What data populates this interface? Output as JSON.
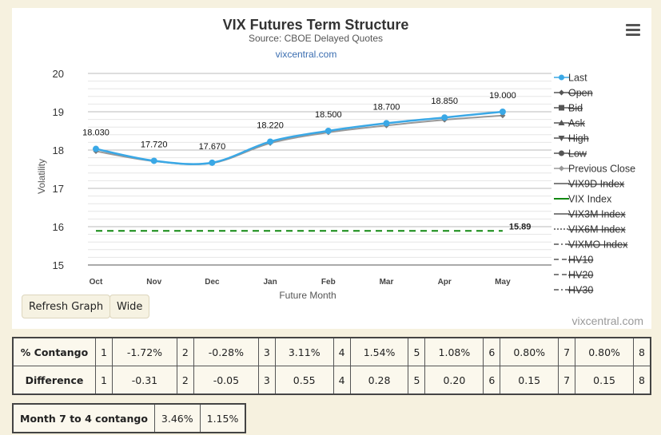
{
  "chart_data": {
    "type": "line",
    "title": "VIX Futures Term Structure",
    "subtitle": "Source: CBOE Delayed Quotes",
    "link_text": "vixcentral.com",
    "credit": "vixcentral.com",
    "xlabel": "Future Month",
    "ylabel": "Volatility",
    "ylim": [
      15,
      20
    ],
    "yticks": [
      15,
      16,
      17,
      18,
      19,
      20
    ],
    "categories": [
      "Oct",
      "Nov",
      "Dec",
      "Jan",
      "Feb",
      "Mar",
      "Apr",
      "May"
    ],
    "series": [
      {
        "name": "Last",
        "values": [
          18.03,
          17.72,
          17.67,
          18.22,
          18.5,
          18.7,
          18.85,
          19.0
        ],
        "color": "#3aa8e6",
        "data_labels": [
          "18.030",
          "17.720",
          "17.670",
          "18.220",
          "18.500",
          "18.700",
          "18.850",
          "19.000"
        ]
      },
      {
        "name": "Previous Close",
        "values": [
          17.97,
          17.71,
          17.66,
          18.18,
          18.46,
          18.64,
          18.79,
          18.9
        ],
        "color": "#999999"
      },
      {
        "name": "VIX Index",
        "values": [
          15.89,
          15.89,
          15.89,
          15.89,
          15.89,
          15.89,
          15.89,
          15.89
        ],
        "color": "#118811",
        "end_label": "15.89"
      }
    ],
    "legend": {
      "placement": "right",
      "items": [
        {
          "label": "Last",
          "symbol": "circle-line",
          "color": "#3aa8e6",
          "hidden": false
        },
        {
          "label": "Open",
          "symbol": "diamond-line",
          "color": "#555555",
          "hidden": true
        },
        {
          "label": "Bid",
          "symbol": "square-line",
          "color": "#555555",
          "hidden": true
        },
        {
          "label": "Ask",
          "symbol": "triangle-line",
          "color": "#555555",
          "hidden": true
        },
        {
          "label": "High",
          "symbol": "triangle-down-line",
          "color": "#555555",
          "hidden": true
        },
        {
          "label": "Low",
          "symbol": "circle-line",
          "color": "#555555",
          "hidden": true
        },
        {
          "label": "Previous Close",
          "symbol": "diamond-line",
          "color": "#999999",
          "hidden": false
        },
        {
          "label": "VIX9D Index",
          "symbol": "solid",
          "color": "#555555",
          "hidden": true
        },
        {
          "label": "VIX Index",
          "symbol": "solid",
          "color": "#118811",
          "hidden": false
        },
        {
          "label": "VIX3M Index",
          "symbol": "solid",
          "color": "#555555",
          "hidden": true
        },
        {
          "label": "VIX6M Index",
          "symbol": "dotted",
          "color": "#555555",
          "hidden": true
        },
        {
          "label": "VIXMO Index",
          "symbol": "dashdot",
          "color": "#555555",
          "hidden": true
        },
        {
          "label": "HV10",
          "symbol": "dashed",
          "color": "#555555",
          "hidden": true
        },
        {
          "label": "HV20",
          "symbol": "dashed",
          "color": "#555555",
          "hidden": true
        },
        {
          "label": "HV30",
          "symbol": "dashdot",
          "color": "#555555",
          "hidden": true
        }
      ]
    },
    "grid": true
  },
  "buttons": {
    "refresh": "Refresh Graph",
    "wide": "Wide"
  },
  "contango_table": {
    "rows": [
      {
        "label": "% Contango",
        "cells": [
          [
            "1",
            "-1.72%"
          ],
          [
            "2",
            "-0.28%"
          ],
          [
            "3",
            "3.11%"
          ],
          [
            "4",
            "1.54%"
          ],
          [
            "5",
            "1.08%"
          ],
          [
            "6",
            "0.80%"
          ],
          [
            "7",
            "0.80%"
          ]
        ],
        "last": "8"
      },
      {
        "label": "Difference",
        "cells": [
          [
            "1",
            "-0.31"
          ],
          [
            "2",
            "-0.05"
          ],
          [
            "3",
            "0.55"
          ],
          [
            "4",
            "0.28"
          ],
          [
            "5",
            "0.20"
          ],
          [
            "6",
            "0.15"
          ],
          [
            "7",
            "0.15"
          ]
        ],
        "last": "8"
      }
    ]
  },
  "summary_table": {
    "label": "Month 7 to 4 contango",
    "value1": "3.46%",
    "value2": "1.15%"
  }
}
